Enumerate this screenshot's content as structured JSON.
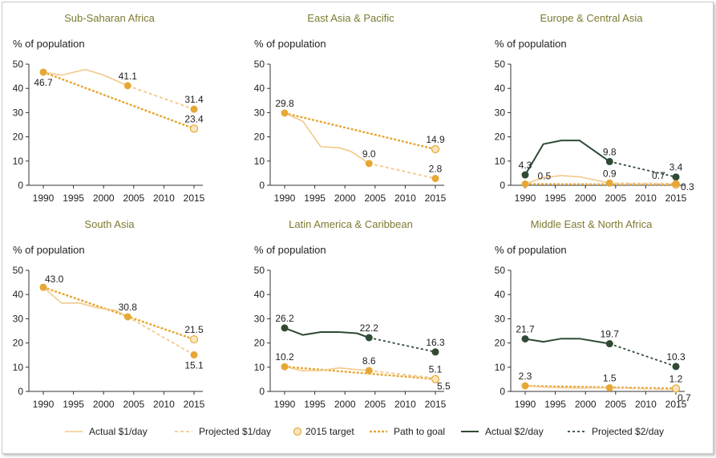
{
  "colors": {
    "light": "#f3c98a",
    "gold": "#e6a735",
    "dark": "#2f4a35",
    "axis": "#333333",
    "title": "#7d7a2f"
  },
  "legend": [
    {
      "label": "Actual $1/day",
      "style": "solid-light"
    },
    {
      "label": "Projected $1/day",
      "style": "dash-light"
    },
    {
      "label": "2015 target",
      "style": "target"
    },
    {
      "label": "Path to goal",
      "style": "dash-gold"
    },
    {
      "label": "Actual $2/day",
      "style": "solid-dark"
    },
    {
      "label": "Projected $2/day",
      "style": "dash-dark"
    }
  ],
  "chart_data": [
    {
      "type": "line",
      "title": "Sub-Saharan Africa",
      "ylabel": "% of population",
      "xlim": [
        1990,
        2015
      ],
      "ylim": [
        0,
        50
      ],
      "xticks": [
        1990,
        1995,
        2000,
        2005,
        2010,
        2015
      ],
      "yticks": [
        0,
        10,
        20,
        30,
        40,
        50
      ],
      "series": [
        {
          "name": "Actual $1/day",
          "style": "solid-light",
          "x": [
            1990,
            1993,
            1997,
            2000,
            2004
          ],
          "y": [
            46.7,
            45.5,
            47.8,
            45.5,
            41.1
          ]
        },
        {
          "name": "Projected $1/day",
          "style": "dash-light",
          "x": [
            2004,
            2015
          ],
          "y": [
            41.1,
            31.4
          ]
        },
        {
          "name": "Path to goal",
          "style": "dash-gold",
          "x": [
            1990,
            2015
          ],
          "y": [
            46.7,
            23.4
          ]
        },
        {
          "name": "2015 target",
          "style": "target",
          "x": [
            2015
          ],
          "y": [
            23.4
          ]
        }
      ],
      "points": [
        {
          "x": 1990,
          "y": 46.7,
          "kind": "gold"
        },
        {
          "x": 2004,
          "y": 41.1,
          "kind": "gold"
        },
        {
          "x": 2015,
          "y": 31.4,
          "kind": "gold"
        }
      ],
      "labels": [
        {
          "text": "46.7",
          "x": 1990,
          "y": 46.7,
          "pos": "below"
        },
        {
          "text": "41.1",
          "x": 2004,
          "y": 41.1,
          "pos": "above"
        },
        {
          "text": "31.4",
          "x": 2015,
          "y": 31.4,
          "pos": "above"
        },
        {
          "text": "23.4",
          "x": 2015,
          "y": 23.4,
          "pos": "above"
        }
      ]
    },
    {
      "type": "line",
      "title": "East Asia & Pacific",
      "ylabel": "% of population",
      "xlim": [
        1990,
        2015
      ],
      "ylim": [
        0,
        50
      ],
      "xticks": [
        1990,
        1995,
        2000,
        2005,
        2010,
        2015
      ],
      "yticks": [
        0,
        10,
        20,
        30,
        40,
        50
      ],
      "series": [
        {
          "name": "Actual $1/day",
          "style": "solid-light",
          "x": [
            1990,
            1993,
            1996,
            1999,
            2001,
            2004
          ],
          "y": [
            29.8,
            26.5,
            15.9,
            15.5,
            14.0,
            9.0
          ]
        },
        {
          "name": "Projected $1/day",
          "style": "dash-light",
          "x": [
            2004,
            2015
          ],
          "y": [
            9.0,
            2.8
          ]
        },
        {
          "name": "Path to goal",
          "style": "dash-gold",
          "x": [
            1990,
            2015
          ],
          "y": [
            29.8,
            14.9
          ]
        },
        {
          "name": "2015 target",
          "style": "target",
          "x": [
            2015
          ],
          "y": [
            14.9
          ]
        }
      ],
      "points": [
        {
          "x": 1990,
          "y": 29.8,
          "kind": "gold"
        },
        {
          "x": 2004,
          "y": 9.0,
          "kind": "gold"
        },
        {
          "x": 2015,
          "y": 2.8,
          "kind": "gold"
        }
      ],
      "labels": [
        {
          "text": "29.8",
          "x": 1990,
          "y": 29.8,
          "pos": "above"
        },
        {
          "text": "9.0",
          "x": 2004,
          "y": 9.0,
          "pos": "above"
        },
        {
          "text": "14.9",
          "x": 2015,
          "y": 14.9,
          "pos": "above"
        },
        {
          "text": "2.8",
          "x": 2015,
          "y": 2.8,
          "pos": "above"
        }
      ]
    },
    {
      "type": "line",
      "title": "Europe & Central Asia",
      "ylabel": "% of population",
      "xlim": [
        1990,
        2015
      ],
      "ylim": [
        0,
        50
      ],
      "xticks": [
        1990,
        1995,
        2000,
        2005,
        2010,
        2015
      ],
      "yticks": [
        0,
        10,
        20,
        30,
        40,
        50
      ],
      "series": [
        {
          "name": "Actual $2/day",
          "style": "solid-dark",
          "x": [
            1990,
            1993,
            1996,
            1999,
            2004
          ],
          "y": [
            4.3,
            17.0,
            18.5,
            18.5,
            9.8
          ]
        },
        {
          "name": "Projected $2/day",
          "style": "dash-dark",
          "x": [
            2004,
            2015
          ],
          "y": [
            9.8,
            3.4
          ]
        },
        {
          "name": "Actual $1/day",
          "style": "solid-light",
          "x": [
            1990,
            1993,
            1996,
            1999,
            2004
          ],
          "y": [
            0.5,
            3.2,
            4.0,
            3.5,
            0.9
          ]
        },
        {
          "name": "Projected $1/day",
          "style": "dash-light",
          "x": [
            2004,
            2015
          ],
          "y": [
            0.9,
            0.7
          ]
        },
        {
          "name": "Path to goal",
          "style": "dash-gold",
          "x": [
            1990,
            2015
          ],
          "y": [
            0.5,
            0.3
          ]
        },
        {
          "name": "2015 target",
          "style": "target",
          "x": [
            2015
          ],
          "y": [
            0.3
          ]
        }
      ],
      "points": [
        {
          "x": 1990,
          "y": 4.3,
          "kind": "dark"
        },
        {
          "x": 2004,
          "y": 9.8,
          "kind": "dark"
        },
        {
          "x": 2015,
          "y": 3.4,
          "kind": "dark"
        },
        {
          "x": 1990,
          "y": 0.5,
          "kind": "gold"
        },
        {
          "x": 2004,
          "y": 0.9,
          "kind": "gold"
        },
        {
          "x": 2015,
          "y": 0.7,
          "kind": "gold"
        }
      ],
      "labels": [
        {
          "text": "4.3",
          "x": 1990,
          "y": 4.3,
          "pos": "above"
        },
        {
          "text": "0.5",
          "x": 1991.8,
          "y": 0.5,
          "pos": "above-right"
        },
        {
          "text": "9.8",
          "x": 2004,
          "y": 9.8,
          "pos": "above"
        },
        {
          "text": "0.9",
          "x": 2004,
          "y": 0.9,
          "pos": "above"
        },
        {
          "text": "3.4",
          "x": 2015,
          "y": 3.4,
          "pos": "above"
        },
        {
          "text": "0.7",
          "x": 2013.5,
          "y": 0.7,
          "pos": "above-left"
        },
        {
          "text": "0.3",
          "x": 2015,
          "y": 0.3,
          "pos": "right"
        }
      ]
    },
    {
      "type": "line",
      "title": "South Asia",
      "ylabel": "% of population",
      "xlim": [
        1990,
        2015
      ],
      "ylim": [
        0,
        50
      ],
      "xticks": [
        1990,
        1995,
        2000,
        2005,
        2010,
        2015
      ],
      "yticks": [
        0,
        10,
        20,
        30,
        40,
        50
      ],
      "series": [
        {
          "name": "Actual $1/day",
          "style": "solid-light",
          "x": [
            1990,
            1993,
            1996,
            1999,
            2002,
            2004
          ],
          "y": [
            43.0,
            36.5,
            36.5,
            34.5,
            33.5,
            30.8
          ]
        },
        {
          "name": "Projected $1/day",
          "style": "dash-light",
          "x": [
            2004,
            2015
          ],
          "y": [
            30.8,
            15.1
          ]
        },
        {
          "name": "Path to goal",
          "style": "dash-gold",
          "x": [
            1990,
            2015
          ],
          "y": [
            43.0,
            21.5
          ]
        },
        {
          "name": "2015 target",
          "style": "target",
          "x": [
            2015
          ],
          "y": [
            21.5
          ]
        }
      ],
      "points": [
        {
          "x": 1990,
          "y": 43.0,
          "kind": "gold"
        },
        {
          "x": 2004,
          "y": 30.8,
          "kind": "gold"
        },
        {
          "x": 2015,
          "y": 15.1,
          "kind": "gold"
        }
      ],
      "labels": [
        {
          "text": "43.0",
          "x": 1990,
          "y": 43.0,
          "pos": "above-right"
        },
        {
          "text": "30.8",
          "x": 2004,
          "y": 30.8,
          "pos": "above"
        },
        {
          "text": "21.5",
          "x": 2015,
          "y": 21.5,
          "pos": "above"
        },
        {
          "text": "15.1",
          "x": 2015,
          "y": 15.1,
          "pos": "below"
        }
      ]
    },
    {
      "type": "line",
      "title": "Latin America & Caribbean",
      "ylabel": "% of population",
      "xlim": [
        1990,
        2015
      ],
      "ylim": [
        0,
        50
      ],
      "xticks": [
        1990,
        1995,
        2000,
        2005,
        2010,
        2015
      ],
      "yticks": [
        0,
        10,
        20,
        30,
        40,
        50
      ],
      "series": [
        {
          "name": "Actual $2/day",
          "style": "solid-dark",
          "x": [
            1990,
            1993,
            1996,
            1999,
            2002,
            2004
          ],
          "y": [
            26.2,
            23.3,
            24.5,
            24.5,
            24.0,
            22.2
          ]
        },
        {
          "name": "Projected $2/day",
          "style": "dash-dark",
          "x": [
            2004,
            2015
          ],
          "y": [
            22.2,
            16.3
          ]
        },
        {
          "name": "Actual $1/day",
          "style": "solid-light",
          "x": [
            1990,
            1993,
            1996,
            1999,
            2002,
            2004
          ],
          "y": [
            10.2,
            8.5,
            8.6,
            9.7,
            9.0,
            8.6
          ]
        },
        {
          "name": "Projected $1/day",
          "style": "dash-light",
          "x": [
            2004,
            2015
          ],
          "y": [
            8.6,
            5.5
          ]
        },
        {
          "name": "Path to goal",
          "style": "dash-gold",
          "x": [
            1990,
            2015
          ],
          "y": [
            10.2,
            5.1
          ]
        },
        {
          "name": "2015 target",
          "style": "target",
          "x": [
            2015
          ],
          "y": [
            5.1
          ]
        }
      ],
      "points": [
        {
          "x": 1990,
          "y": 26.2,
          "kind": "dark"
        },
        {
          "x": 2004,
          "y": 22.2,
          "kind": "dark"
        },
        {
          "x": 2015,
          "y": 16.3,
          "kind": "dark"
        },
        {
          "x": 1990,
          "y": 10.2,
          "kind": "gold"
        },
        {
          "x": 2004,
          "y": 8.6,
          "kind": "gold"
        }
      ],
      "labels": [
        {
          "text": "26.2",
          "x": 1990,
          "y": 26.2,
          "pos": "above"
        },
        {
          "text": "22.2",
          "x": 2004,
          "y": 22.2,
          "pos": "above"
        },
        {
          "text": "16.3",
          "x": 2015,
          "y": 16.3,
          "pos": "above"
        },
        {
          "text": "10.2",
          "x": 1990,
          "y": 10.2,
          "pos": "above"
        },
        {
          "text": "8.6",
          "x": 2004,
          "y": 8.6,
          "pos": "above"
        },
        {
          "text": "5.1",
          "x": 2015,
          "y": 5.1,
          "pos": "above"
        },
        {
          "text": "5.5",
          "x": 2015,
          "y": 5.5,
          "pos": "below-right"
        }
      ]
    },
    {
      "type": "line",
      "title": "Middle East & North Africa",
      "ylabel": "% of population",
      "xlim": [
        1990,
        2015
      ],
      "ylim": [
        0,
        50
      ],
      "xticks": [
        1990,
        1995,
        2000,
        2005,
        2010,
        2015
      ],
      "yticks": [
        0,
        10,
        20,
        30,
        40,
        50
      ],
      "series": [
        {
          "name": "Actual $2/day",
          "style": "solid-dark",
          "x": [
            1990,
            1993,
            1996,
            1999,
            2004
          ],
          "y": [
            21.7,
            20.5,
            21.8,
            21.8,
            19.7
          ]
        },
        {
          "name": "Projected $2/day",
          "style": "dash-dark",
          "x": [
            2004,
            2015
          ],
          "y": [
            19.7,
            10.3
          ]
        },
        {
          "name": "Actual $1/day",
          "style": "solid-light",
          "x": [
            1990,
            1993,
            1996,
            1999,
            2004
          ],
          "y": [
            2.3,
            1.8,
            1.5,
            1.4,
            1.5
          ]
        },
        {
          "name": "Projected $1/day",
          "style": "dash-light",
          "x": [
            2004,
            2015
          ],
          "y": [
            1.5,
            0.7
          ]
        },
        {
          "name": "Path to goal",
          "style": "dash-gold",
          "x": [
            1990,
            2015
          ],
          "y": [
            2.3,
            1.2
          ]
        },
        {
          "name": "2015 target",
          "style": "target",
          "x": [
            2015
          ],
          "y": [
            1.2
          ]
        }
      ],
      "points": [
        {
          "x": 1990,
          "y": 21.7,
          "kind": "dark"
        },
        {
          "x": 2004,
          "y": 19.7,
          "kind": "dark"
        },
        {
          "x": 2015,
          "y": 10.3,
          "kind": "dark"
        },
        {
          "x": 1990,
          "y": 2.3,
          "kind": "gold"
        },
        {
          "x": 2004,
          "y": 1.5,
          "kind": "gold"
        }
      ],
      "labels": [
        {
          "text": "21.7",
          "x": 1990,
          "y": 21.7,
          "pos": "above"
        },
        {
          "text": "19.7",
          "x": 2004,
          "y": 19.7,
          "pos": "above"
        },
        {
          "text": "10.3",
          "x": 2015,
          "y": 10.3,
          "pos": "above"
        },
        {
          "text": "2.3",
          "x": 1990,
          "y": 2.3,
          "pos": "above"
        },
        {
          "text": "1.5",
          "x": 2004,
          "y": 1.5,
          "pos": "above"
        },
        {
          "text": "1.2",
          "x": 2015,
          "y": 1.2,
          "pos": "above"
        },
        {
          "text": "0.7",
          "x": 2015,
          "y": 0.7,
          "pos": "below-right"
        }
      ]
    }
  ]
}
